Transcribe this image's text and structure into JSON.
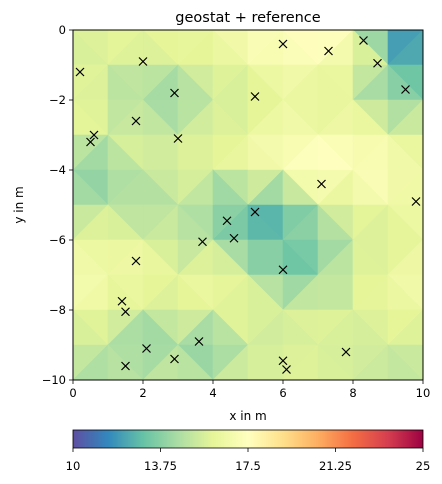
{
  "chart_data": {
    "type": "heatmap",
    "title": "geostat + reference",
    "xlabel": "x in m",
    "ylabel": "y in m",
    "xlim": [
      0,
      10
    ],
    "ylim": [
      -10,
      0
    ],
    "xticks": [
      "0",
      "2",
      "4",
      "6",
      "8",
      "10"
    ],
    "yticks": [
      "0",
      "−2",
      "−4",
      "−6",
      "−8",
      "−10"
    ],
    "grid": false,
    "colormap": "Spectral_r",
    "colorbar": {
      "orientation": "horizontal",
      "placement": "bottom",
      "range": [
        10,
        25
      ],
      "ticks": [
        "10",
        "13.75",
        "17.5",
        "21.25",
        "25"
      ],
      "colors": [
        "#5e4fa2",
        "#3288bd",
        "#66c2a5",
        "#abdda4",
        "#e6f598",
        "#ffffbf",
        "#fee08b",
        "#fdae61",
        "#f46d43",
        "#d53e4f",
        "#9e0142"
      ]
    },
    "field": {
      "x": [
        0,
        1,
        2,
        3,
        4,
        5,
        6,
        7,
        8,
        9,
        10
      ],
      "y": [
        0,
        -1,
        -2,
        -3,
        -4,
        -5,
        -6,
        -7,
        -8,
        -9,
        -10
      ],
      "values": [
        [
          15.6,
          16.0,
          16.2,
          16.4,
          16.6,
          17.0,
          17.8,
          18.0,
          17.2,
          11.8,
          10.8
        ],
        [
          15.8,
          15.6,
          15.6,
          15.4,
          16.0,
          16.4,
          16.8,
          17.0,
          16.2,
          13.6,
          12.6
        ],
        [
          16.2,
          15.4,
          13.8,
          14.0,
          15.0,
          15.6,
          16.0,
          16.0,
          15.6,
          14.2,
          13.4
        ],
        [
          15.6,
          16.0,
          15.8,
          15.6,
          15.8,
          16.4,
          16.8,
          17.0,
          16.8,
          16.4,
          16.0
        ],
        [
          13.2,
          13.8,
          15.0,
          15.8,
          15.8,
          16.4,
          17.2,
          17.8,
          17.6,
          17.0,
          16.4
        ],
        [
          14.8,
          15.0,
          14.2,
          15.0,
          14.4,
          12.6,
          13.2,
          15.2,
          16.2,
          16.6,
          16.6
        ],
        [
          16.0,
          16.2,
          15.8,
          15.0,
          14.4,
          13.4,
          12.2,
          14.0,
          15.0,
          15.6,
          16.0
        ],
        [
          16.8,
          17.0,
          16.6,
          16.2,
          16.6,
          15.6,
          13.4,
          14.0,
          15.8,
          16.6,
          16.8
        ],
        [
          16.4,
          16.2,
          15.2,
          15.8,
          16.0,
          16.0,
          15.4,
          15.8,
          15.6,
          16.0,
          16.4
        ],
        [
          15.6,
          15.0,
          13.4,
          14.4,
          13.0,
          15.6,
          15.4,
          16.0,
          15.4,
          15.6,
          15.4
        ],
        [
          14.8,
          14.0,
          15.4,
          15.2,
          15.0,
          15.4,
          15.8,
          15.6,
          15.4,
          15.0,
          14.8
        ]
      ]
    },
    "reference_points": {
      "marker": "x",
      "x": [
        0.2,
        2.0,
        6.0,
        7.3,
        8.3,
        8.7,
        2.9,
        5.2,
        9.5,
        1.8,
        3.0,
        0.6,
        0.5,
        7.1,
        9.8,
        5.2,
        4.4,
        4.6,
        3.7,
        1.8,
        6.0,
        1.4,
        1.5,
        2.1,
        2.9,
        3.6,
        1.5,
        6.0,
        6.1,
        7.8
      ],
      "y": [
        -1.2,
        -0.9,
        -0.4,
        -0.6,
        -0.3,
        -0.95,
        -1.8,
        -1.9,
        -1.7,
        -2.6,
        -3.1,
        -3.0,
        -3.2,
        -4.4,
        -4.9,
        -5.2,
        -5.45,
        -5.95,
        -6.05,
        -6.6,
        -6.85,
        -7.75,
        -8.05,
        -9.1,
        -9.4,
        -8.9,
        -9.6,
        -9.45,
        -9.7,
        -9.2
      ]
    }
  }
}
